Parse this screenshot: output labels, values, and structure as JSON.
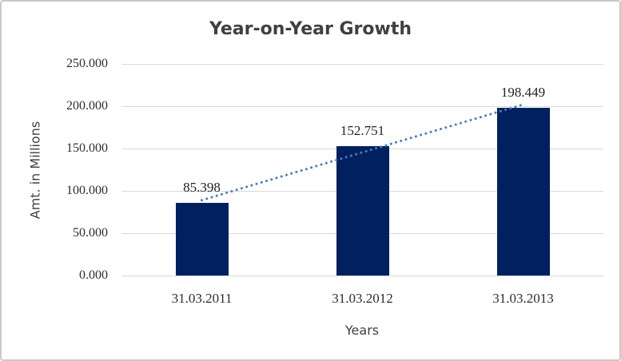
{
  "frame": {
    "background": "#ffffff",
    "border_color": "#c9c9c9"
  },
  "chart_data": {
    "type": "bar",
    "title": "Year-on-Year Growth",
    "xlabel": "Years",
    "ylabel": "Amt. in Millions",
    "categories": [
      "31.03.2011",
      "31.03.2012",
      "31.03.2013"
    ],
    "values": [
      85.398,
      152.751,
      198.449
    ],
    "data_labels": [
      "85.398",
      "152.751",
      "198.449"
    ],
    "ylim": [
      0,
      250
    ],
    "ytick_step": 50,
    "ytick_labels": [
      "0.000",
      "50.000",
      "100.000",
      "150.000",
      "200.000",
      "250.000"
    ],
    "grid": true,
    "legend_position": "none",
    "bar_color": "#002060",
    "gridline_color": "#d9d9d9",
    "trendline": {
      "type": "linear",
      "style": "dotted",
      "color": "#4a7ebb"
    },
    "title_color": "#404040",
    "text_color": "#2e2e2e"
  }
}
